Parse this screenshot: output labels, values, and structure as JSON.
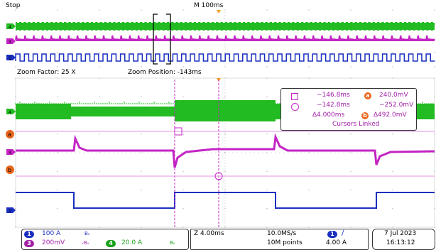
{
  "header": {
    "run_state": "Stop",
    "timebase": "M 100ms"
  },
  "zoom": {
    "factor_label": "Zoom Factor: 25 X",
    "position_label": "Zoom Position: -143ms"
  },
  "cursors": {
    "t1": "−146.8ms",
    "t2": "−142.8ms",
    "dt": "∆4.000ms",
    "a_label": "a",
    "b_label": "b",
    "va": "240.0mV",
    "vb": "−252.0mV",
    "dv": "∆492.0mV",
    "linked": "Cursors Linked"
  },
  "channels": {
    "ch1": {
      "num": "1",
      "scale": "100 A",
      "bw": "Bᵥ",
      "color": "#1a2fbf"
    },
    "ch3": {
      "num": "3",
      "scale": "200mV",
      "bw": "ᵥBᵥ",
      "color": "#a021a6"
    },
    "ch4": {
      "num": "4",
      "scale": "20.0 A",
      "bw": "Bᵥ",
      "color": "#1aa01a"
    }
  },
  "horizontal": {
    "zoom_scale": "Z 4.00ms",
    "sample_rate": "10.0MS/s",
    "record_length": "10M points"
  },
  "trigger": {
    "source": "1",
    "slope": "∕",
    "level": "4.00 A"
  },
  "datetime": {
    "date": "7 Jul  2023",
    "time": "16:13:12"
  },
  "colors": {
    "ch1": "#1a2fbf",
    "ch3": "#c424c4",
    "ch4": "#22bb22",
    "cursor_a": "#e8651a",
    "trigger": "#f0a020"
  }
}
